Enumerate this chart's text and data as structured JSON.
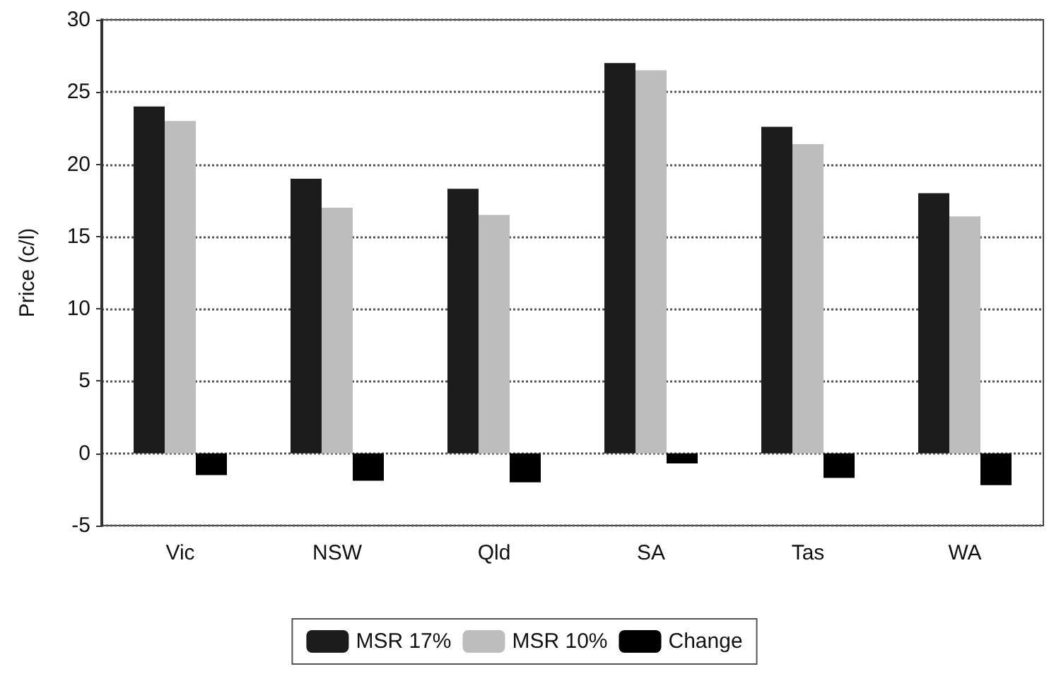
{
  "chart_data": {
    "type": "bar",
    "ylabel": "Price (c/l)",
    "categories": [
      "Vic",
      "NSW",
      "Qld",
      "SA",
      "Tas",
      "WA"
    ],
    "series": [
      {
        "name": "MSR 17%",
        "color": "#1c1c1c",
        "values": [
          24,
          19,
          18.3,
          27,
          22.6,
          18
        ]
      },
      {
        "name": "MSR 10%",
        "color": "#bdbdbd",
        "values": [
          23,
          17,
          16.5,
          26.5,
          21.4,
          16.4
        ]
      },
      {
        "name": "Change",
        "color": "#000000",
        "values": [
          -1.5,
          -1.9,
          -2,
          -0.7,
          -1.7,
          -2.2
        ]
      }
    ],
    "ylim": [
      -5,
      30
    ],
    "yticks": [
      -5,
      0,
      5,
      10,
      15,
      20,
      25,
      30
    ],
    "grid": "y",
    "legend": "bottom"
  }
}
